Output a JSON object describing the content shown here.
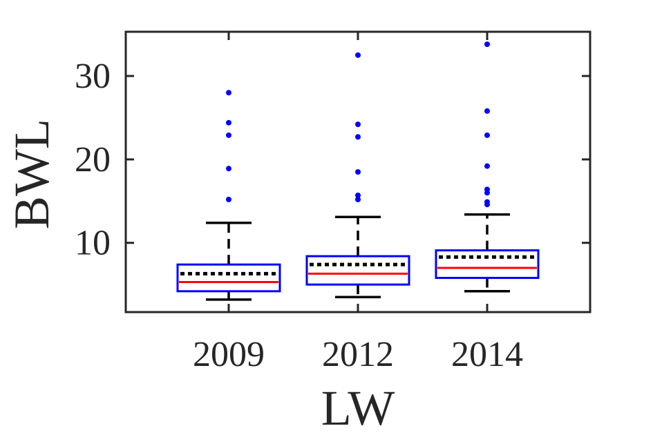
{
  "chart_data": {
    "type": "box",
    "xlabel": "LW",
    "ylabel": "BWL",
    "categories": [
      "2009",
      "2012",
      "2014"
    ],
    "yticks": [
      10,
      20,
      30
    ],
    "ylim": [
      1.7,
      35.3
    ],
    "grid": false,
    "legend": "none",
    "boxes": [
      {
        "category": "2009",
        "whisker_low": 3.2,
        "q1": 4.2,
        "median": 5.3,
        "mean": 6.3,
        "q3": 7.4,
        "whisker_high": 12.4,
        "outliers": [
          15.2,
          18.9,
          22.9,
          24.4,
          28.0
        ]
      },
      {
        "category": "2012",
        "whisker_low": 3.5,
        "q1": 5.0,
        "median": 6.3,
        "mean": 7.4,
        "q3": 8.4,
        "whisker_high": 13.1,
        "outliers": [
          15.2,
          15.7,
          18.5,
          22.7,
          24.2,
          32.5
        ]
      },
      {
        "category": "2014",
        "whisker_low": 4.2,
        "q1": 5.8,
        "median": 7.0,
        "mean": 8.3,
        "q3": 9.1,
        "whisker_high": 13.4,
        "outliers": [
          14.6,
          14.9,
          16.0,
          16.4,
          19.2,
          22.9,
          25.8,
          33.8
        ]
      }
    ],
    "colors": {
      "box": "#0000ff",
      "median": "#ff0000",
      "mean": "#000000",
      "whisker": "#000000",
      "outlier": "#0000ff",
      "axis": "#262626"
    }
  }
}
